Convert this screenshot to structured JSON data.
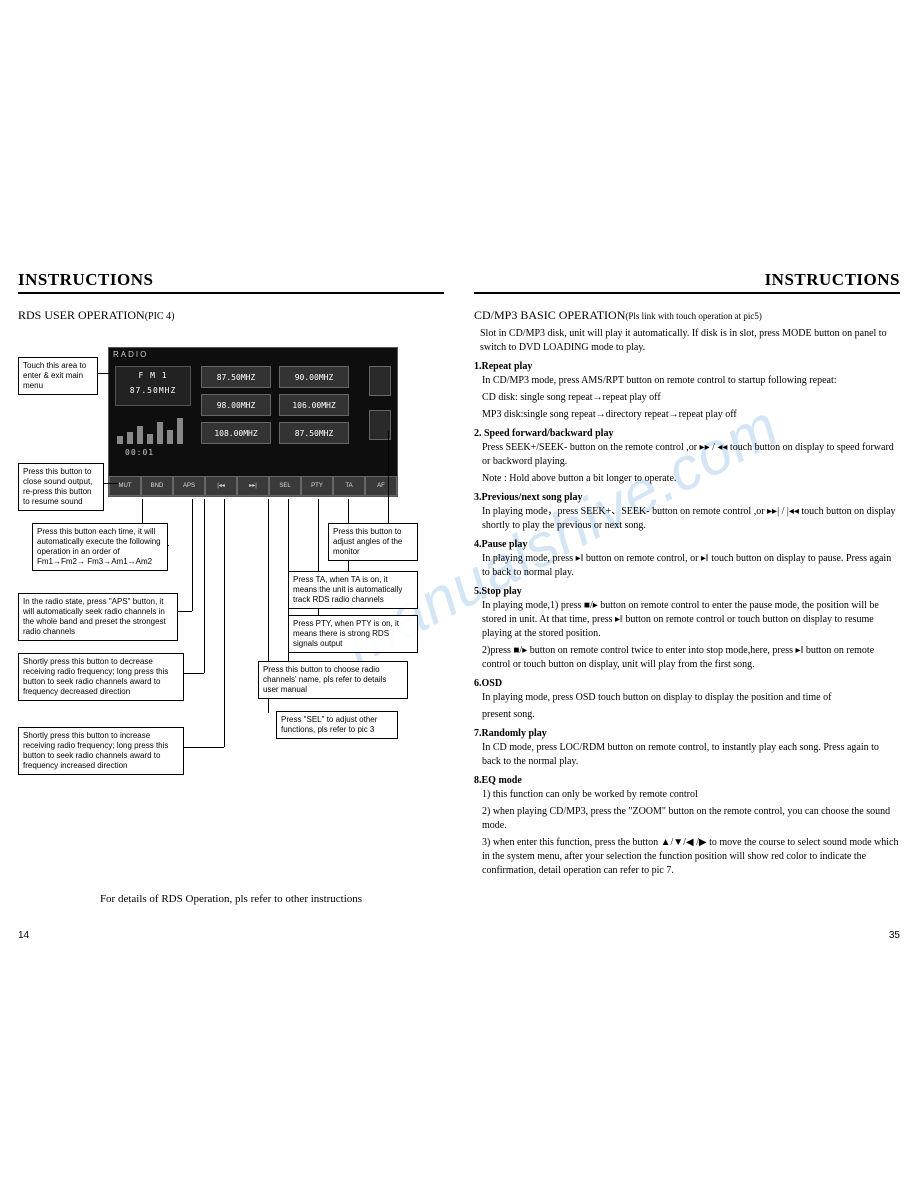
{
  "watermark": "manualshive.com",
  "left": {
    "header": "INSTRUCTIONS",
    "title_main": "RDS USER OPERATION",
    "title_sub": "(PIC 4)",
    "radio": {
      "label": "RADIO",
      "band": "F M 1",
      "freq": "87.50MHZ",
      "time": "00:01",
      "cells": [
        "87.50MHZ",
        "90.00MHZ",
        "98.00MHZ",
        "106.00MHZ",
        "108.00MHZ",
        "87.50MHZ"
      ],
      "buttons": [
        "MUT",
        "BND",
        "APS",
        "|◂◂",
        "▸▸|",
        "SEL",
        "PTY",
        "TA",
        "AF"
      ]
    },
    "callouts": {
      "c1": "Touch this area to enter & exit main menu",
      "c2": "Press this button to close sound output, re-press this button to resume sound",
      "c3": "Press this button each time, it will automatically execute the following operation in an order of   Fm1→Fm2→ Fm3→Am1→Am2",
      "c4": "In the radio state, press \"APS\" button, it will automatically seek radio channels in the whole band and preset the strongest radio channels",
      "c5": "Shortly press this button to decrease receiving radio frequency; long press this button to seek radio channels award to frequency decreased direction",
      "c6": "Shortly press this button to increase receiving radio frequency; long press this button to seek radio channels award to frequency increased direction",
      "c7": "Press this button to adjust angles of the monitor",
      "c8": "Press TA, when TA is on, it means the unit is automatically track RDS radio channels",
      "c9": "Press PTY, when PTY is on, it means there is strong RDS signals output",
      "c10": "Press this button to choose radio channels' name, pls refer to details user manual",
      "c11": "Press \"SEL\" to adjust other functions, pls refer to pic 3"
    },
    "footnote": "For details of RDS Operation, pls refer to other instructions",
    "page_num": "14"
  },
  "right": {
    "header": "INSTRUCTIONS",
    "title_main": "CD/MP3 BASIC OPERATION",
    "title_sub": "(Pls link with touch operation at pic5)",
    "intro": "Slot in CD/MP3 disk, unit will play it automatically. If disk is in slot,  press MODE button on panel to switch to DVD LOADING mode to play.",
    "items": [
      {
        "head": "1.Repeat play",
        "lines": [
          "In CD/MP3 mode, press AMS/RPT button on remote control to startup following repeat:",
          "CD disk: single song repeat→repeat play off",
          "MP3 disk:single song repeat→directory repeat→repeat play off"
        ]
      },
      {
        "head": "2. Speed forward/backward play",
        "lines": [
          "Press  SEEK+/SEEK-  button on the remote control ,or ▸▸ / ◂◂ touch button on display to speed forward or backword playing.",
          "Note : Hold  above button a bit longer to operate."
        ]
      },
      {
        "head": "3.Previous/next song play",
        "lines": [
          "In playing mode，press SEEK+、SEEK- button on remote control ,or ▸▸| / |◂◂  touch button on display shortly to play the previous or next song."
        ]
      },
      {
        "head": "4.Pause play",
        "lines": [
          "In playing mode, press ▸‖ button on remote control, or  ▸‖ touch  button on display to pause. Press again to back to normal play."
        ]
      },
      {
        "head": "5.Stop play",
        "lines": [
          "In playing mode,1) press  ■/▸ button on remote control to enter the pause mode, the position will be stored in unit. At that time, press ▸‖  button on remote control or touch button on display to resume playing at the stored position.",
          "2)press ■/▸ button on remote control twice to enter into stop mode,here, press ▸‖ button on remote control or touch button on display, unit will play from the first song."
        ]
      },
      {
        "head": "6.OSD",
        "lines": [
          "In playing mode, press OSD touch button on display to display the position and  time of",
          "present song."
        ]
      },
      {
        "head": "7.Randomly play",
        "lines": [
          "In CD mode, press LOC/RDM button on remote control, to instantly play each song. Press again to back to  the normal play."
        ]
      },
      {
        "head": "8.EQ mode",
        "lines": [
          "1) this function can only be worked by remote control",
          "2) when playing CD/MP3, press the \"ZOOM\" button on the remote control, you can choose the sound mode.",
          "3) when enter this function, press the button ▲/▼/◀ /▶ to move the course to select sound mode which in the system menu, after your selection the function position will show red color to indicate the confirmation, detail operation can refer to pic 7."
        ]
      }
    ],
    "page_num": "35"
  }
}
